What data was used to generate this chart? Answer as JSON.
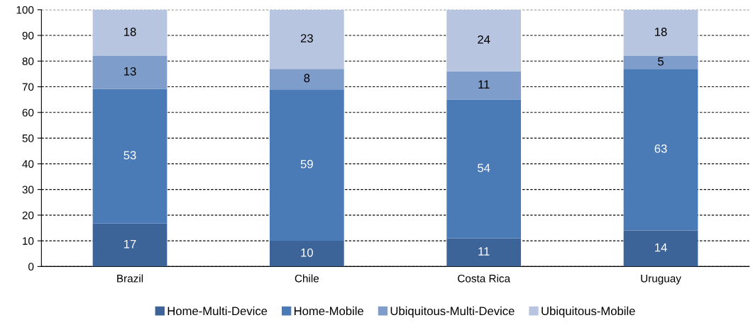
{
  "chart_data": {
    "type": "bar",
    "stacked": true,
    "categories": [
      "Brazil",
      "Chile",
      "Costa Rica",
      "Uruguay"
    ],
    "series": [
      {
        "name": "Home-Multi-Device",
        "color": "#3c6498",
        "values": [
          16.7,
          10,
          11,
          14
        ],
        "value_labels": [
          "17",
          "10",
          "11",
          "14"
        ]
      },
      {
        "name": "Home-Mobile",
        "color": "#4a7bb6",
        "values": [
          52.5,
          59,
          54,
          63
        ],
        "value_labels": [
          "53",
          "59",
          "54",
          "63"
        ]
      },
      {
        "name": "Ubiquitous-Multi-Device",
        "color": "#7f9dcb",
        "values": [
          12.8,
          8,
          11,
          5
        ],
        "value_labels": [
          "13",
          "8",
          "11",
          "5"
        ]
      },
      {
        "name": "Ubiquitous-Mobile",
        "color": "#b7c5e0",
        "values": [
          18,
          23,
          24,
          18
        ],
        "value_labels": [
          "18",
          "23",
          "24",
          "18"
        ]
      }
    ],
    "ylim": [
      0,
      100
    ],
    "yticks": [
      0,
      10,
      20,
      30,
      40,
      50,
      60,
      70,
      80,
      90,
      100
    ],
    "grid": "y",
    "legend": "bottom"
  }
}
